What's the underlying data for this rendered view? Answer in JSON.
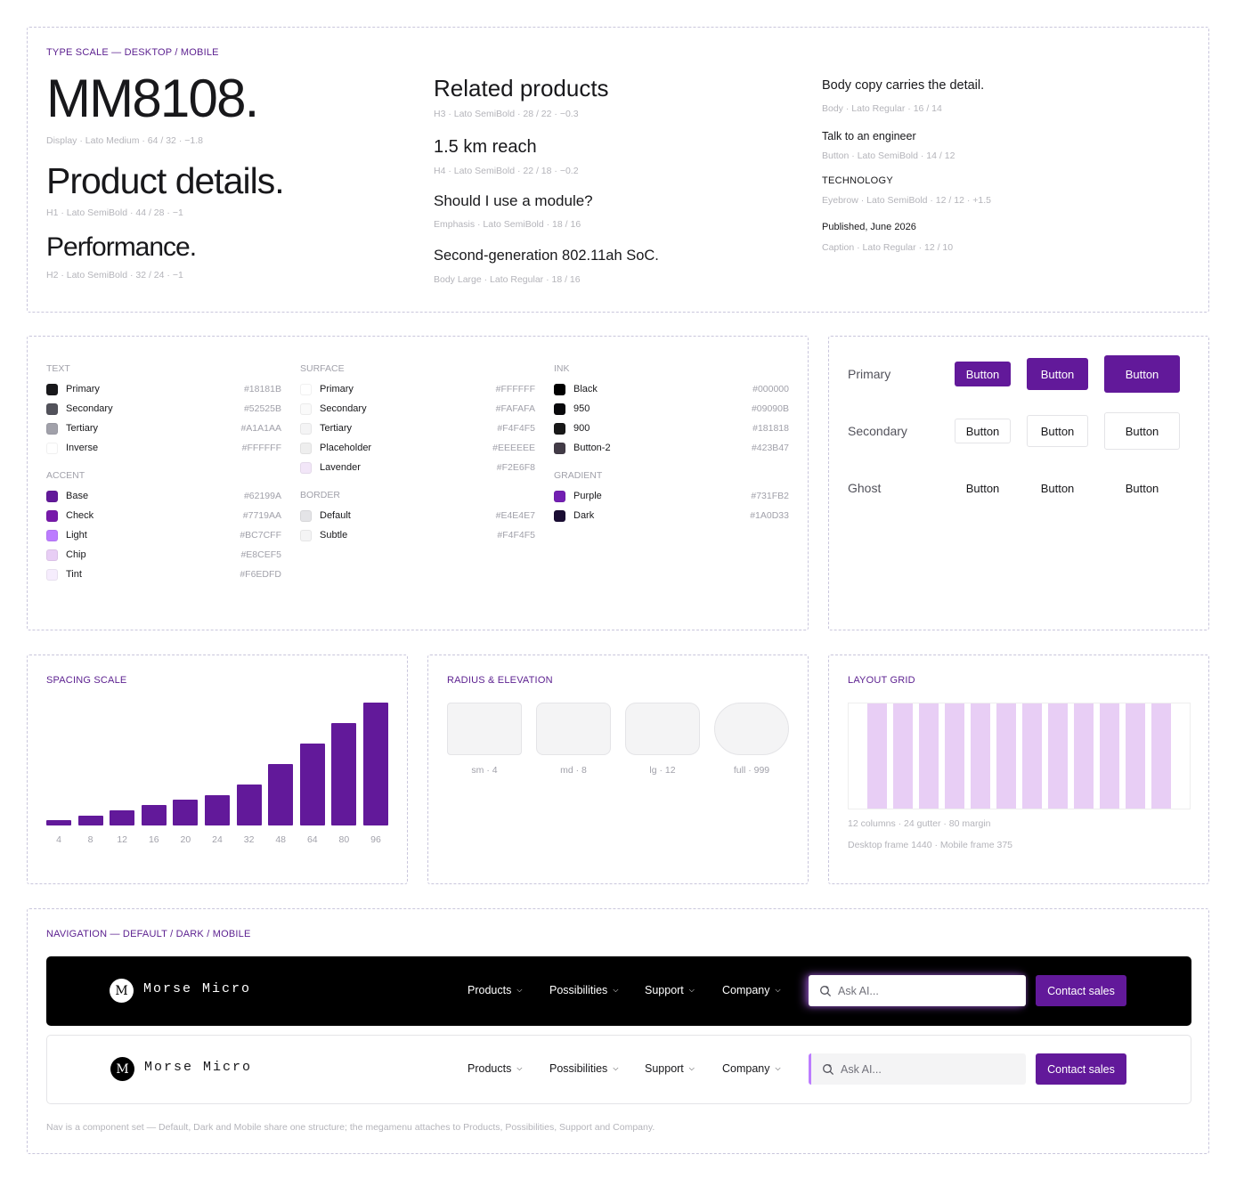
{
  "type_scale": {
    "eyebrow": "TYPE SCALE — DESKTOP / MOBILE",
    "display": {
      "sample": "MM8108.",
      "spec": "Display · Lato Medium · 64 / 32 · −1.8"
    },
    "h1": {
      "sample": "Product details.",
      "spec": "H1 · Lato SemiBold · 44 / 28 · −1"
    },
    "h2": {
      "sample": "Performance.",
      "spec": "H2 · Lato SemiBold · 32 / 24 · −1"
    },
    "h3": {
      "sample": "Related products",
      "spec": "H3 · Lato SemiBold · 28 / 22 · −0.3"
    },
    "h4": {
      "sample": "1.5 km reach",
      "spec": "H4 · Lato SemiBold · 22 / 18 · −0.2"
    },
    "emphasis": {
      "sample": "Should I use a module?",
      "spec": "Emphasis · Lato SemiBold · 18 / 16"
    },
    "body_large": {
      "sample": "Second-generation 802.11ah SoC.",
      "spec": "Body Large · Lato Regular · 18 / 16"
    },
    "body": {
      "sample": "Body copy carries the detail.",
      "spec": "Body · Lato Regular · 16 / 14"
    },
    "button": {
      "sample": "Talk to an engineer",
      "spec": "Button · Lato SemiBold · 14 / 12"
    },
    "eyebrow_style": {
      "sample": "TECHNOLOGY",
      "spec": "Eyebrow · Lato SemiBold · 12 / 12 · +1.5"
    },
    "caption": {
      "sample": "Published, June 2026",
      "spec": "Caption · Lato Regular · 12 / 10"
    }
  },
  "colors": {
    "text": {
      "title": "TEXT",
      "items": [
        {
          "name": "Primary",
          "hex": "#18181B"
        },
        {
          "name": "Secondary",
          "hex": "#52525B"
        },
        {
          "name": "Tertiary",
          "hex": "#A1A1AA"
        },
        {
          "name": "Inverse",
          "hex": "#FFFFFF"
        }
      ]
    },
    "accent": {
      "title": "ACCENT",
      "items": [
        {
          "name": "Base",
          "hex": "#62199A"
        },
        {
          "name": "Check",
          "hex": "#7719AA"
        },
        {
          "name": "Light",
          "hex": "#BC7CFF"
        },
        {
          "name": "Chip",
          "hex": "#E8CEF5"
        },
        {
          "name": "Tint",
          "hex": "#F6EDFD"
        }
      ]
    },
    "surface": {
      "title": "SURFACE",
      "items": [
        {
          "name": "Primary",
          "hex": "#FFFFFF"
        },
        {
          "name": "Secondary",
          "hex": "#FAFAFA"
        },
        {
          "name": "Tertiary",
          "hex": "#F4F4F5"
        },
        {
          "name": "Placeholder",
          "hex": "#EEEEEE"
        },
        {
          "name": "Lavender",
          "hex": "#F2E6F8"
        }
      ]
    },
    "border": {
      "title": "BORDER",
      "items": [
        {
          "name": "Default",
          "hex": "#E4E4E7"
        },
        {
          "name": "Subtle",
          "hex": "#F4F4F5"
        }
      ]
    },
    "ink": {
      "title": "INK",
      "items": [
        {
          "name": "Black",
          "hex": "#000000"
        },
        {
          "name": "950",
          "hex": "#09090B"
        },
        {
          "name": "900",
          "hex": "#181818"
        },
        {
          "name": "Button-2",
          "hex": "#423B47"
        }
      ]
    },
    "gradient": {
      "title": "GRADIENT",
      "items": [
        {
          "name": "Purple",
          "hex": "#731FB2"
        },
        {
          "name": "Dark",
          "hex": "#1A0D33"
        }
      ]
    }
  },
  "buttons": {
    "rows": [
      {
        "label": "Primary",
        "variant": "primary"
      },
      {
        "label": "Secondary",
        "variant": "secondary"
      },
      {
        "label": "Ghost",
        "variant": "ghost"
      }
    ],
    "button_label": "Button"
  },
  "spacing": {
    "eyebrow": "SPACING SCALE",
    "chart_data": {
      "type": "bar",
      "categories": [
        "4",
        "8",
        "12",
        "16",
        "20",
        "24",
        "32",
        "48",
        "64",
        "80",
        "96"
      ],
      "values": [
        4,
        8,
        12,
        16,
        20,
        24,
        32,
        48,
        64,
        80,
        96
      ],
      "ylim": [
        0,
        96
      ],
      "color": "#62199A"
    }
  },
  "radius": {
    "eyebrow": "RADIUS & ELEVATION",
    "items": [
      {
        "label": "sm · 4",
        "radius": 4
      },
      {
        "label": "md · 8",
        "radius": 8
      },
      {
        "label": "lg · 12",
        "radius": 12
      },
      {
        "label": "full · 999",
        "radius": 999
      }
    ]
  },
  "layout_grid": {
    "eyebrow": "LAYOUT GRID",
    "columns": 12,
    "line1": "12 columns · 24 gutter · 80 margin",
    "line2": "Desktop frame 1440 · Mobile frame 375"
  },
  "navigation": {
    "eyebrow": "NAVIGATION — DEFAULT / DARK / MOBILE",
    "logo_mark": "M",
    "brand": "Morse Micro",
    "links": [
      "Products",
      "Possibilities",
      "Support",
      "Company"
    ],
    "search_placeholder": "Ask AI...",
    "cta": "Contact sales",
    "footnote": "Nav is a component set — Default, Dark and Mobile share one structure; the megamenu attaches to Products, Possibilities, Support and Company."
  }
}
